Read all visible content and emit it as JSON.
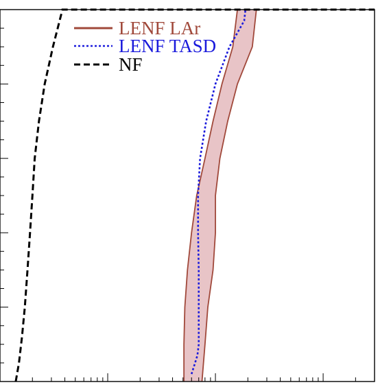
{
  "chart_data": {
    "type": "line",
    "title": "",
    "xlabel": "",
    "ylabel": "",
    "xscale": "log",
    "xlim": [
      1,
      3000
    ],
    "ylim": [
      0,
      1
    ],
    "grid": false,
    "legend": {
      "placement": "top-left",
      "entries": [
        {
          "label": "LENF LAr",
          "color": "#a0483a",
          "style": "solid"
        },
        {
          "label": "LENF TASD",
          "color": "#1a1adc",
          "style": "dotted"
        },
        {
          "label": "NF",
          "color": "#000000",
          "style": "dashed"
        }
      ]
    },
    "series": [
      {
        "name": "NF",
        "style": "dashed",
        "color": "#000000",
        "points": [
          [
            1.4,
            0.0
          ],
          [
            1.5,
            0.05
          ],
          [
            1.6,
            0.12
          ],
          [
            1.7,
            0.2
          ],
          [
            1.8,
            0.3
          ],
          [
            1.9,
            0.4
          ],
          [
            2.0,
            0.5
          ],
          [
            2.1,
            0.6
          ],
          [
            2.3,
            0.7
          ],
          [
            2.6,
            0.8
          ],
          [
            3.1,
            0.9
          ],
          [
            3.8,
            1.0
          ],
          [
            3000,
            1.0
          ]
        ]
      },
      {
        "name": "LENF TASD",
        "style": "dotted",
        "color": "#1a1adc",
        "points": [
          [
            60,
            0.02
          ],
          [
            68,
            0.07
          ],
          [
            70,
            0.1
          ],
          [
            70,
            0.2
          ],
          [
            70,
            0.3
          ],
          [
            69,
            0.4
          ],
          [
            69,
            0.5
          ],
          [
            72,
            0.6
          ],
          [
            82,
            0.7
          ],
          [
            100,
            0.8
          ],
          [
            135,
            0.9
          ],
          [
            185,
            0.97
          ],
          [
            190,
            1.0
          ]
        ]
      },
      {
        "name": "LENF LAr",
        "style": "band",
        "color": "#a0483a",
        "fill": "#e8c4c7",
        "lower": [
          [
            51,
            0.0
          ],
          [
            51,
            0.1
          ],
          [
            52,
            0.2
          ],
          [
            55,
            0.3
          ],
          [
            60,
            0.4
          ],
          [
            67,
            0.5
          ],
          [
            80,
            0.6
          ],
          [
            95,
            0.7
          ],
          [
            115,
            0.8
          ],
          [
            145,
            0.9
          ],
          [
            160,
            1.0
          ]
        ],
        "upper": [
          [
            75,
            0.0
          ],
          [
            80,
            0.1
          ],
          [
            85,
            0.2
          ],
          [
            95,
            0.3
          ],
          [
            100,
            0.4
          ],
          [
            100,
            0.5
          ],
          [
            110,
            0.6
          ],
          [
            130,
            0.7
          ],
          [
            160,
            0.8
          ],
          [
            220,
            0.9
          ],
          [
            240,
            1.0
          ]
        ]
      }
    ]
  }
}
